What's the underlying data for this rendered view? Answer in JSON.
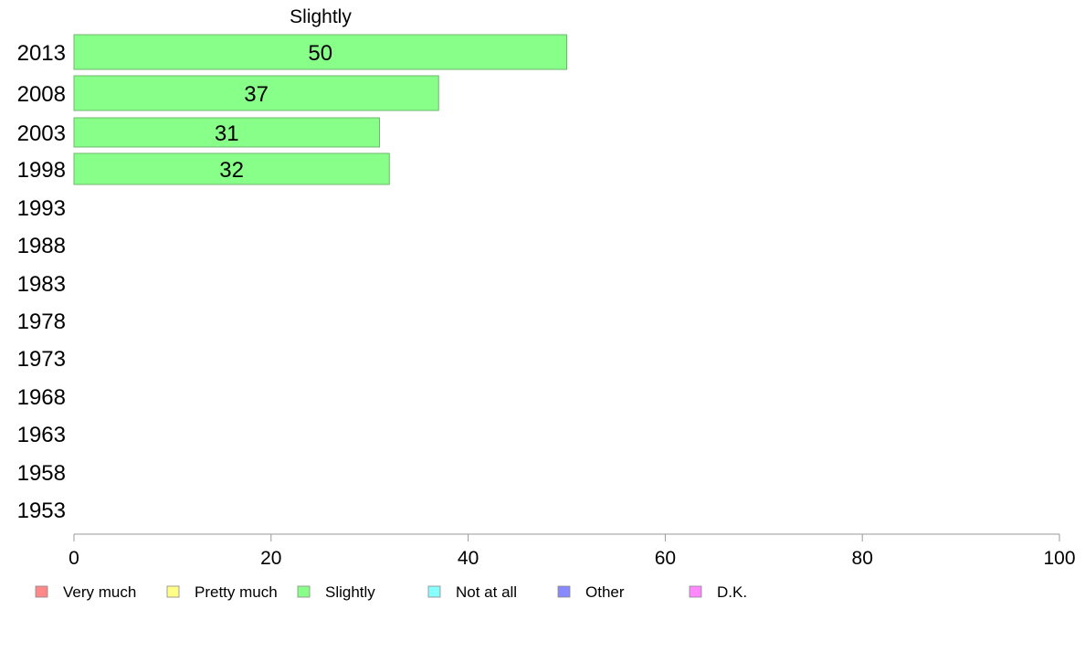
{
  "chart_data": {
    "type": "bar",
    "orientation": "horizontal",
    "title": "Slightly",
    "categories": [
      "2013",
      "2008",
      "2003",
      "1998",
      "1993",
      "1988",
      "1983",
      "1978",
      "1973",
      "1968",
      "1963",
      "1958",
      "1953"
    ],
    "series": [
      {
        "name": "Slightly",
        "color": "#88ff88",
        "values": [
          50,
          37,
          31,
          32,
          null,
          null,
          null,
          null,
          null,
          null,
          null,
          null,
          null
        ]
      }
    ],
    "xlim": [
      0,
      100
    ],
    "xticks": [
      0,
      20,
      40,
      60,
      80,
      100
    ],
    "grid": false,
    "legend_position": "bottom",
    "legend": [
      {
        "label": "Very much",
        "color": "#ff8888"
      },
      {
        "label": "Pretty much",
        "color": "#ffff88"
      },
      {
        "label": "Slightly",
        "color": "#88ff88"
      },
      {
        "label": "Not at all",
        "color": "#88ffff"
      },
      {
        "label": "Other",
        "color": "#8888ff"
      },
      {
        "label": "D.K.",
        "color": "#ff88ff"
      }
    ]
  }
}
